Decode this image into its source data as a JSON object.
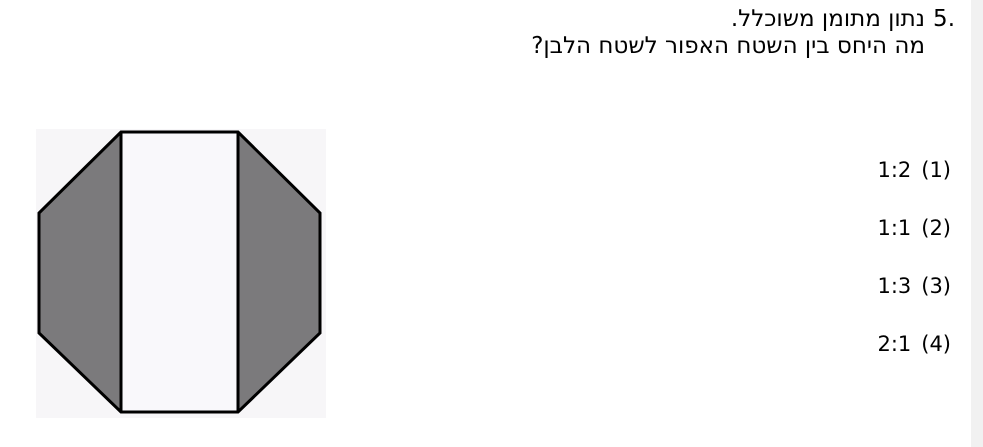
{
  "question": {
    "number": ".5",
    "line1": "נתון מתומן משוכלל.",
    "line2": "מה היחס בין השטח האפור לשטח הלבן?"
  },
  "figure": {
    "colors": {
      "background": "#f7f6f8",
      "gray": "#7b7a7c",
      "white": "#f9f8fb",
      "stroke": "#000000"
    }
  },
  "answers": [
    {
      "value": "1:2",
      "label": "(1)"
    },
    {
      "value": "1:1",
      "label": "(2)"
    },
    {
      "value": "1:3",
      "label": "(3)"
    },
    {
      "value": "2:1",
      "label": "(4)"
    }
  ]
}
